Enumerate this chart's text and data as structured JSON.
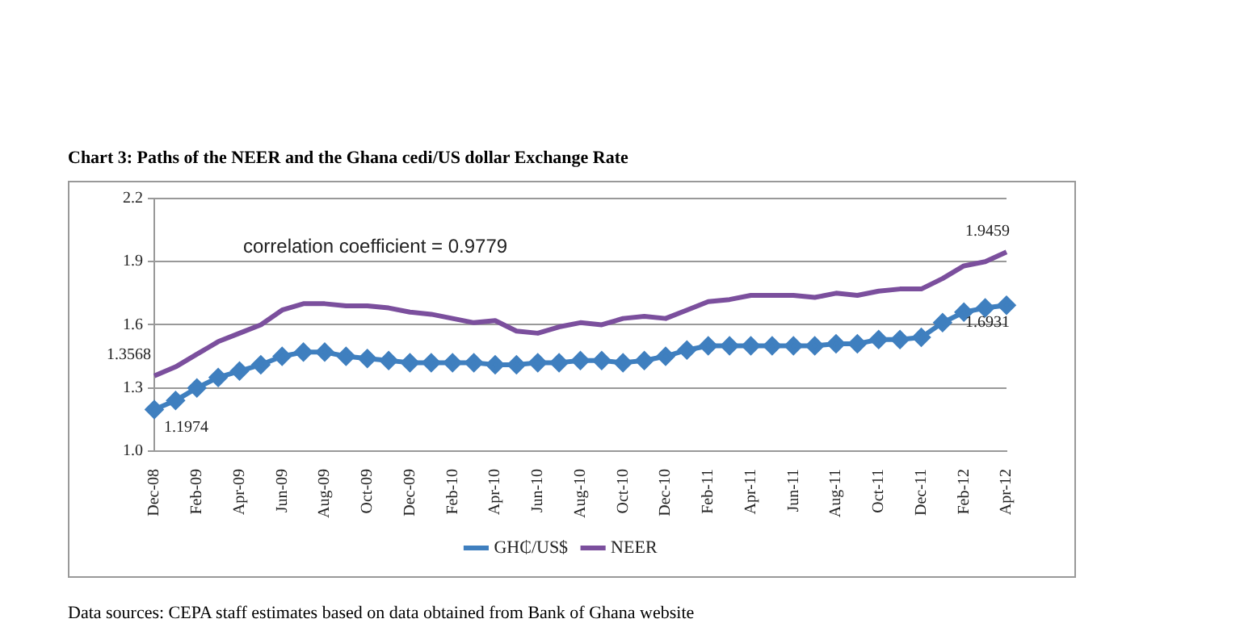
{
  "chart_data": {
    "type": "line",
    "title": "Chart 3: Paths of the NEER and the Ghana cedi/US dollar Exchange Rate",
    "categories": [
      "Dec-08",
      null,
      "Feb-09",
      null,
      "Apr-09",
      null,
      "Jun-09",
      null,
      "Aug-09",
      null,
      "Oct-09",
      null,
      "Dec-09",
      null,
      "Feb-10",
      null,
      "Apr-10",
      null,
      "Jun-10",
      null,
      "Aug-10",
      null,
      "Oct-10",
      null,
      "Dec-10",
      null,
      "Feb-11",
      null,
      "Apr-11",
      null,
      "Jun-11",
      null,
      "Aug-11",
      null,
      "Oct-11",
      null,
      "Dec-11",
      null,
      "Feb-12",
      null,
      "Apr-12"
    ],
    "series": [
      {
        "name": "GH₵/US$",
        "color": "#3f7fbf",
        "marker": "diamond",
        "values": [
          1.1974,
          1.24,
          1.3,
          1.35,
          1.38,
          1.41,
          1.45,
          1.47,
          1.47,
          1.45,
          1.44,
          1.43,
          1.42,
          1.42,
          1.42,
          1.42,
          1.41,
          1.41,
          1.42,
          1.42,
          1.43,
          1.43,
          1.42,
          1.43,
          1.45,
          1.48,
          1.5,
          1.5,
          1.5,
          1.5,
          1.5,
          1.5,
          1.51,
          1.51,
          1.53,
          1.53,
          1.54,
          1.61,
          1.66,
          1.68,
          1.6931
        ],
        "value_labels": [
          "1.1974",
          null,
          null,
          null,
          null,
          null,
          null,
          null,
          null,
          null,
          null,
          null,
          null,
          null,
          null,
          null,
          null,
          null,
          null,
          null,
          null,
          null,
          null,
          null,
          null,
          null,
          null,
          null,
          null,
          null,
          null,
          null,
          null,
          null,
          null,
          null,
          null,
          null,
          null,
          null,
          "1.6931"
        ]
      },
      {
        "name": "NEER",
        "color": "#7b4f9d",
        "marker": "none",
        "values": [
          1.3568,
          1.4,
          1.46,
          1.52,
          1.56,
          1.6,
          1.67,
          1.7,
          1.7,
          1.69,
          1.69,
          1.68,
          1.66,
          1.65,
          1.63,
          1.61,
          1.62,
          1.57,
          1.56,
          1.59,
          1.61,
          1.6,
          1.63,
          1.64,
          1.63,
          1.67,
          1.71,
          1.72,
          1.74,
          1.74,
          1.74,
          1.73,
          1.75,
          1.74,
          1.76,
          1.77,
          1.77,
          1.82,
          1.88,
          1.9,
          1.9459
        ],
        "value_labels": [
          "1.3568",
          null,
          null,
          null,
          null,
          null,
          null,
          null,
          null,
          null,
          null,
          null,
          null,
          null,
          null,
          null,
          null,
          null,
          null,
          null,
          null,
          null,
          null,
          null,
          null,
          null,
          null,
          null,
          null,
          null,
          null,
          null,
          null,
          null,
          null,
          null,
          null,
          null,
          null,
          null,
          "1.9459"
        ]
      }
    ],
    "ylim": [
      1.0,
      2.2
    ],
    "yticks": [
      {
        "value": 1.0,
        "label": "1.0"
      },
      1.3,
      1.6,
      1.9,
      2.2
    ],
    "grid": "y",
    "legend": "bottom",
    "line_style": "solid",
    "annotations": [
      "correlation coefficient = 0.9779",
      "Data sources: CEPA staff estimates based on data obtained from Bank of Ghana website"
    ]
  }
}
